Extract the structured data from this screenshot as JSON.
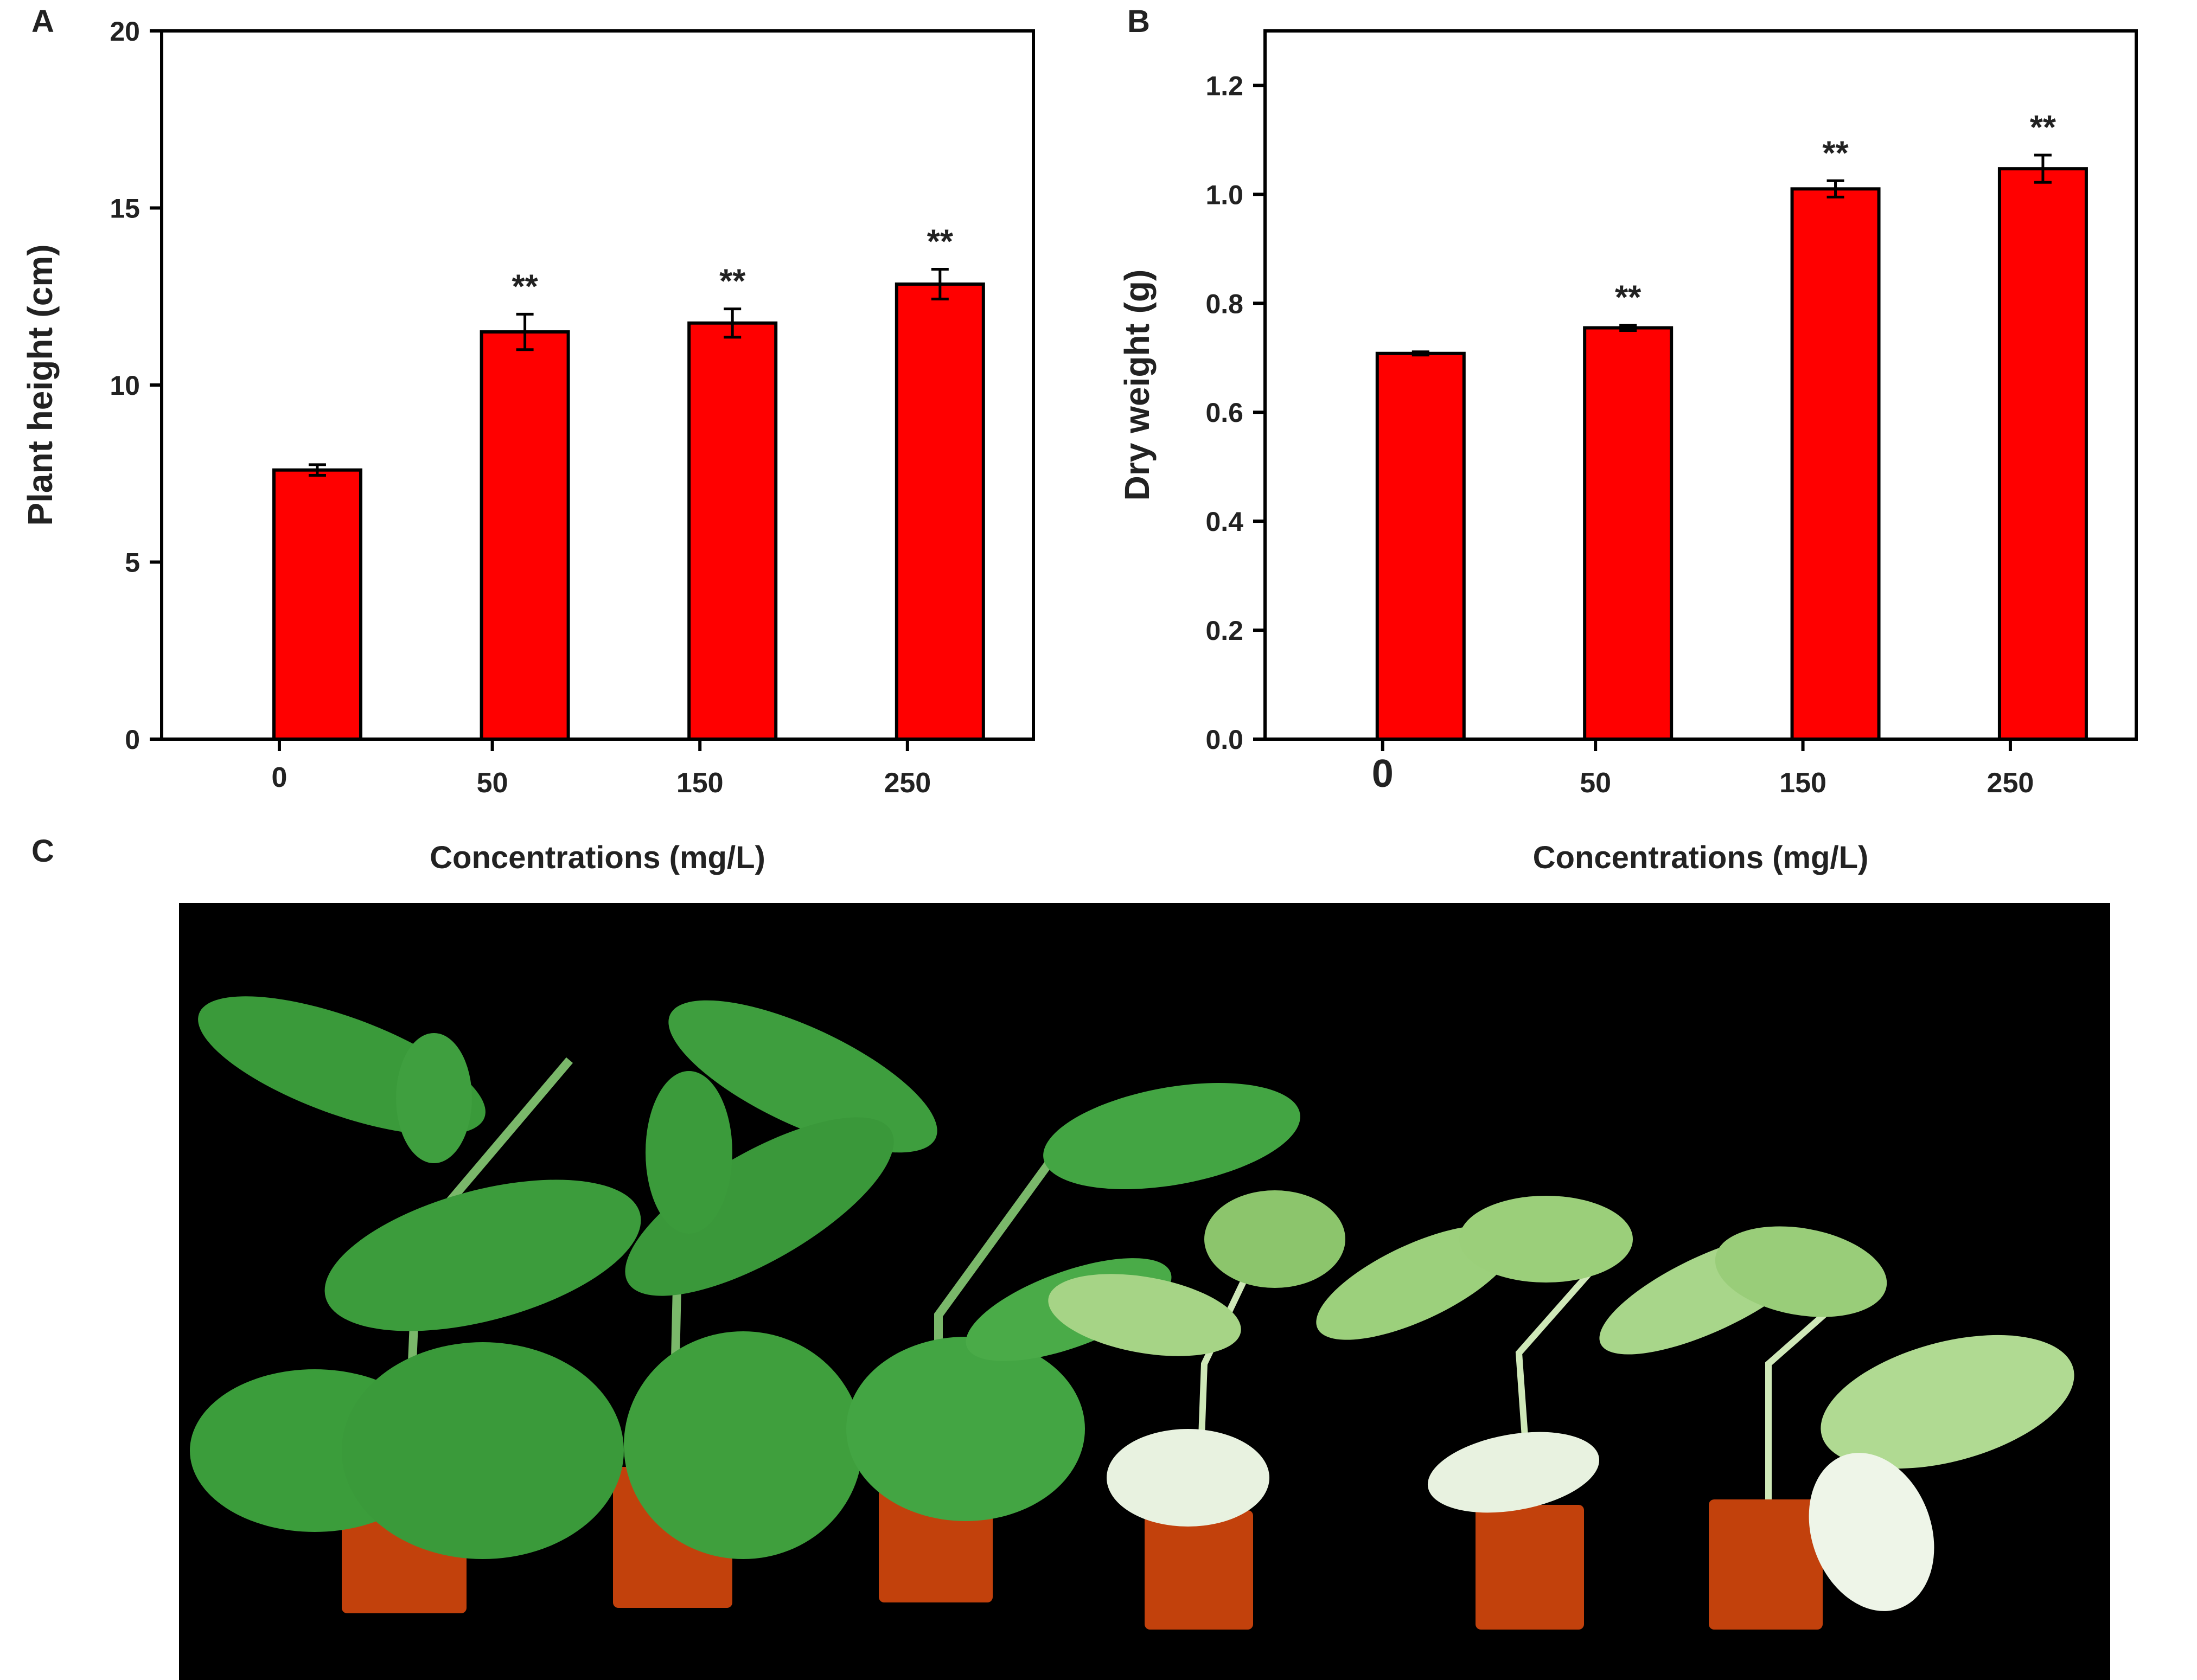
{
  "panels": {
    "a": "A",
    "b": "B",
    "c": "C"
  },
  "chart_data": [
    {
      "type": "bar",
      "categories": [
        "0",
        "50",
        "150",
        "250"
      ],
      "values": [
        7.6,
        11.5,
        11.75,
        12.85
      ],
      "errors": [
        0.15,
        0.5,
        0.4,
        0.42
      ],
      "annotations": [
        "",
        "**",
        "**",
        "**"
      ],
      "ylabel": "Plant height (cm)",
      "xlabel": "Concentrations (mg/L)",
      "ylim": [
        0,
        20
      ],
      "yticks": [
        "0",
        "5",
        "10",
        "15",
        "20"
      ],
      "grid": false,
      "bar_color": "#ff0000"
    },
    {
      "type": "bar",
      "categories": [
        "0",
        "50",
        "150",
        "250"
      ],
      "values": [
        0.708,
        0.755,
        1.01,
        1.047
      ],
      "errors": [
        0.003,
        0.005,
        0.015,
        0.025
      ],
      "annotations": [
        "",
        "**",
        "**",
        "**"
      ],
      "ylabel": "Dry weight (g)",
      "xlabel": "Concentrations (mg/L)",
      "ylim": [
        0,
        1.3
      ],
      "yticks": [
        "0.0",
        "0.2",
        "0.4",
        "0.6",
        "0.8",
        "1.0",
        "1.2"
      ],
      "grid": false,
      "bar_color": "#ff0000"
    }
  ],
  "photo": {
    "background": "#000000",
    "pot_color": "#c2410c",
    "leaf_dark": "#3b9d3b",
    "leaf_pale": "#bfe3a0"
  }
}
